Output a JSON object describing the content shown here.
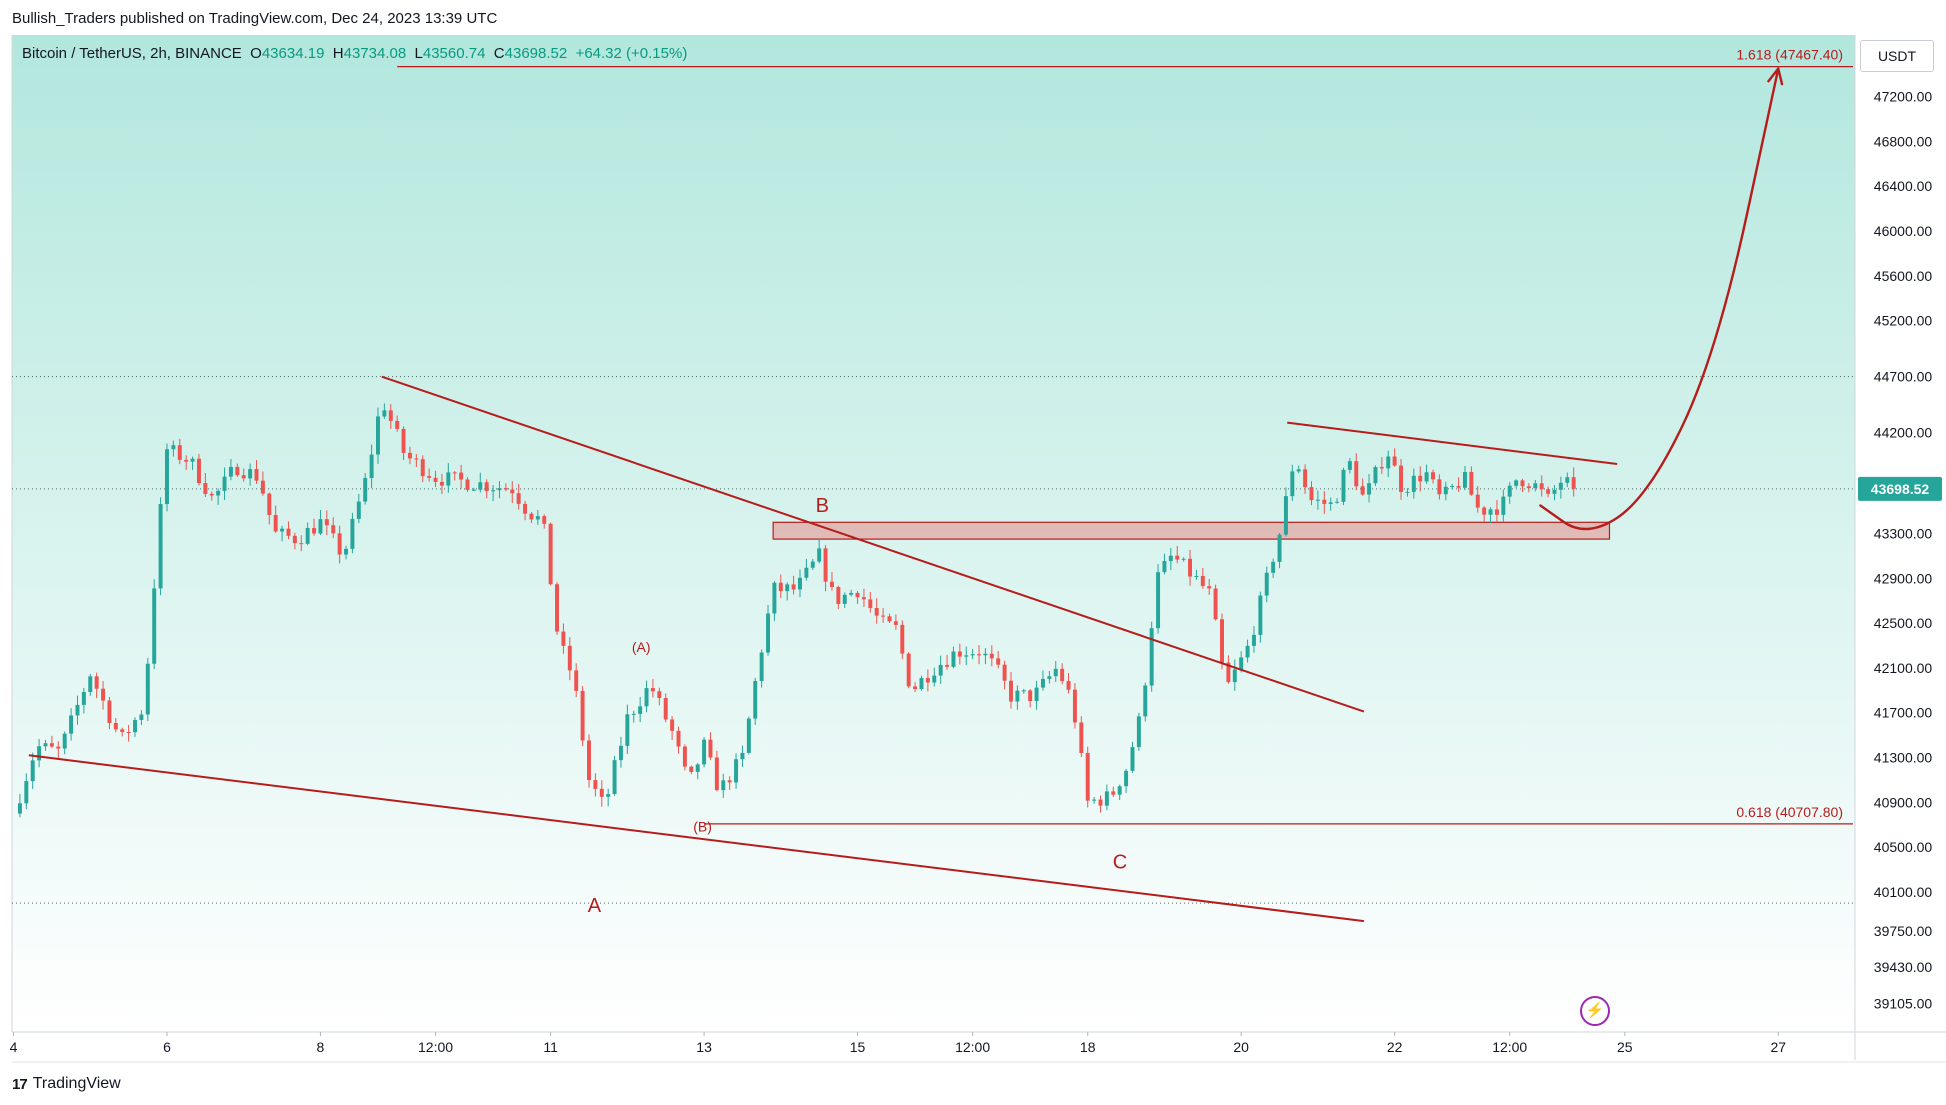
{
  "header": {
    "publisher": "Bullish_Traders published on TradingView.com, Dec 24, 2023 13:39 UTC"
  },
  "symbol": {
    "name": "Bitcoin / TetherUS, 2h, BINANCE",
    "open_label": "O",
    "open": "43634.19",
    "high_label": "H",
    "high": "43734.08",
    "low_label": "L",
    "low": "43560.74",
    "close_label": "C",
    "close": "43698.52",
    "change": "+64.32 (+0.15%)"
  },
  "currency": "USDT",
  "footer": {
    "brand": "TradingView"
  },
  "colors": {
    "up": "#26a69a",
    "down": "#ef5350",
    "annotation": "#b71c1c",
    "bg_top": "#b2e7dd",
    "bg_bottom": "#ffffff",
    "price_label": "#26a69a"
  },
  "chart_data": {
    "type": "candlestick",
    "title": "Bitcoin / TetherUS, 2h, BINANCE",
    "ylim": [
      38850,
      47750
    ],
    "y_ticks": [
      47200,
      46800,
      46400,
      46000,
      45600,
      45200,
      44700,
      44200,
      43300,
      42900,
      42500,
      42100,
      41700,
      41300,
      40900,
      40500,
      40100,
      39750,
      39430,
      39105
    ],
    "y_tick_labels": [
      "47200.00",
      "46800.00",
      "46400.00",
      "46000.00",
      "45600.00",
      "45200.00",
      "44700.00",
      "44200.00",
      "43300.00",
      "42900.00",
      "42500.00",
      "42100.00",
      "41700.00",
      "41300.00",
      "40900.00",
      "40500.00",
      "40100.00",
      "39750.00",
      "39430.00",
      "39105.00"
    ],
    "x_range_days": [
      3.98,
      28.0
    ],
    "x_ticks": [
      {
        "day": 4,
        "label": "4"
      },
      {
        "day": 6,
        "label": "6"
      },
      {
        "day": 8,
        "label": "8"
      },
      {
        "day": 9.5,
        "label": "12:00"
      },
      {
        "day": 11,
        "label": "11"
      },
      {
        "day": 13,
        "label": "13"
      },
      {
        "day": 15,
        "label": "15"
      },
      {
        "day": 16.5,
        "label": "12:00"
      },
      {
        "day": 18,
        "label": "18"
      },
      {
        "day": 20,
        "label": "20"
      },
      {
        "day": 22,
        "label": "22"
      },
      {
        "day": 23.5,
        "label": "12:00"
      },
      {
        "day": 25,
        "label": "25"
      },
      {
        "day": 27,
        "label": "27"
      }
    ],
    "last_price": 43698.52,
    "last_price_label": "43698.52",
    "dotted_levels": [
      44700,
      43698.52,
      40000
    ],
    "fib_levels": [
      {
        "value": 47467.4,
        "label": "1.618 (47467.40)",
        "from_day": 9.0
      },
      {
        "value": 40707.8,
        "label": "0.618 (40707.80)",
        "from_day": 13.0
      }
    ],
    "support_zone": {
      "from_day": 13.9,
      "to_day": 24.8,
      "low": 43250,
      "high": 43400
    },
    "trendlines": [
      {
        "name": "upper-falling-trendline",
        "from": [
          8.8,
          44700
        ],
        "to": [
          21.6,
          41710
        ]
      },
      {
        "name": "lower-falling-trendline",
        "from": [
          4.2,
          41320
        ],
        "to": [
          21.6,
          39840
        ]
      },
      {
        "name": "flag-top-trendline",
        "from": [
          20.6,
          44290
        ],
        "to": [
          24.9,
          43920
        ]
      }
    ],
    "projection_path": [
      [
        23.9,
        43550
      ],
      [
        24.5,
        43260
      ],
      [
        25.3,
        43620
      ],
      [
        26.2,
        44900
      ],
      [
        27.0,
        47450
      ]
    ],
    "wave_labels": [
      {
        "text": "A",
        "day": 11.57,
        "price": 39920,
        "size": "large"
      },
      {
        "text": "B",
        "day": 14.54,
        "price": 43490,
        "size": "large"
      },
      {
        "text": "C",
        "day": 18.42,
        "price": 40310,
        "size": "large"
      },
      {
        "text": "(A)",
        "day": 12.18,
        "price": 42240,
        "size": "small"
      },
      {
        "text": "(B)",
        "day": 12.98,
        "price": 40640,
        "size": "small"
      }
    ],
    "anchors": [
      [
        4.0,
        40800
      ],
      [
        4.3,
        41400
      ],
      [
        4.6,
        41350
      ],
      [
        5.0,
        42050
      ],
      [
        5.4,
        41450
      ],
      [
        5.7,
        41750
      ],
      [
        5.9,
        43400
      ],
      [
        6.0,
        44050
      ],
      [
        6.3,
        43950
      ],
      [
        6.6,
        43600
      ],
      [
        6.9,
        43900
      ],
      [
        7.2,
        43800
      ],
      [
        7.4,
        43300
      ],
      [
        7.7,
        43250
      ],
      [
        8.0,
        43400
      ],
      [
        8.3,
        43100
      ],
      [
        8.6,
        43800
      ],
      [
        8.8,
        44500
      ],
      [
        9.1,
        44000
      ],
      [
        9.5,
        43800
      ],
      [
        10.0,
        43750
      ],
      [
        10.5,
        43700
      ],
      [
        10.7,
        43500
      ],
      [
        10.9,
        43400
      ],
      [
        11.1,
        42350
      ],
      [
        11.3,
        42000
      ],
      [
        11.5,
        41100
      ],
      [
        11.7,
        40850
      ],
      [
        12.0,
        41650
      ],
      [
        12.3,
        41950
      ],
      [
        12.6,
        41500
      ],
      [
        12.8,
        41050
      ],
      [
        13.0,
        41400
      ],
      [
        13.2,
        41000
      ],
      [
        13.5,
        41300
      ],
      [
        13.7,
        42100
      ],
      [
        13.9,
        42800
      ],
      [
        14.2,
        42800
      ],
      [
        14.5,
        43100
      ],
      [
        14.7,
        42700
      ],
      [
        15.0,
        42800
      ],
      [
        15.3,
        42500
      ],
      [
        15.5,
        42450
      ],
      [
        15.7,
        41900
      ],
      [
        16.0,
        42100
      ],
      [
        16.3,
        42250
      ],
      [
        16.6,
        42250
      ],
      [
        16.8,
        42100
      ],
      [
        17.0,
        41850
      ],
      [
        17.3,
        41850
      ],
      [
        17.6,
        42100
      ],
      [
        17.8,
        41800
      ],
      [
        18.0,
        40900
      ],
      [
        18.3,
        40950
      ],
      [
        18.5,
        41200
      ],
      [
        18.7,
        41700
      ],
      [
        18.9,
        42900
      ],
      [
        19.1,
        43100
      ],
      [
        19.4,
        42900
      ],
      [
        19.6,
        42750
      ],
      [
        19.8,
        41900
      ],
      [
        20.1,
        42300
      ],
      [
        20.3,
        42800
      ],
      [
        20.5,
        43300
      ],
      [
        20.7,
        44000
      ],
      [
        20.9,
        43600
      ],
      [
        21.2,
        43550
      ],
      [
        21.4,
        43950
      ],
      [
        21.6,
        43600
      ],
      [
        21.9,
        44050
      ],
      [
        22.1,
        43700
      ],
      [
        22.4,
        43850
      ],
      [
        22.6,
        43600
      ],
      [
        22.9,
        43800
      ],
      [
        23.1,
        43500
      ],
      [
        23.4,
        43550
      ],
      [
        23.6,
        43800
      ],
      [
        23.8,
        43750
      ],
      [
        24.0,
        43600
      ],
      [
        24.2,
        43800
      ],
      [
        24.3,
        43698.52
      ]
    ]
  }
}
